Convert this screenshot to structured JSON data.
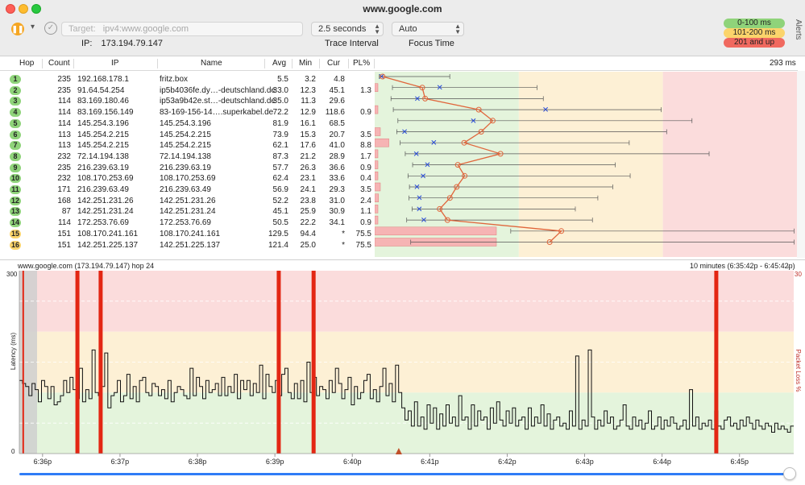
{
  "window": {
    "title": "www.google.com"
  },
  "toolbar": {
    "pause_icon": "pause-icon",
    "target_label": "Target:",
    "target_value": "ipv4:www.google.com",
    "ip_label": "IP:",
    "ip_value": "173.194.79.147",
    "interval_value": "2.5 seconds",
    "interval_label": "Trace Interval",
    "focus_value": "Auto",
    "focus_label": "Focus Time",
    "alerts_label": "Alerts"
  },
  "latency_legend": [
    {
      "label": "0-100 ms",
      "color": "#8fd37a"
    },
    {
      "label": "101-200 ms",
      "color": "#fbd46b"
    },
    {
      "label": "201 and up",
      "color": "#f0695f"
    }
  ],
  "table": {
    "headers": {
      "hop": "Hop",
      "count": "Count",
      "ip": "IP",
      "name": "Name",
      "avg": "Avg",
      "min": "Min",
      "cur": "Cur",
      "pl": "PL%",
      "scale": "293 ms"
    },
    "rows": [
      {
        "hop": "1",
        "count": "235",
        "ip": "192.168.178.1",
        "name": "fritz.box",
        "avg": "5.5",
        "min": "3.2",
        "cur": "4.8",
        "pl": "",
        "badge": "#8fd37a"
      },
      {
        "hop": "2",
        "count": "235",
        "ip": "91.64.54.254",
        "name": "ip5b4036fe.dy…-deutschland.de",
        "avg": "33.0",
        "min": "12.3",
        "cur": "45.1",
        "pl": "1.3",
        "badge": "#8fd37a"
      },
      {
        "hop": "3",
        "count": "114",
        "ip": "83.169.180.46",
        "name": "ip53a9b42e.st…-deutschland.de",
        "avg": "35.0",
        "min": "11.3",
        "cur": "29.6",
        "pl": "",
        "badge": "#8fd37a"
      },
      {
        "hop": "4",
        "count": "114",
        "ip": "83.169.156.149",
        "name": "83-169-156-14….superkabel.de",
        "avg": "72.2",
        "min": "12.9",
        "cur": "118.6",
        "pl": "0.9",
        "badge": "#8fd37a"
      },
      {
        "hop": "5",
        "count": "114",
        "ip": "145.254.3.196",
        "name": "145.254.3.196",
        "avg": "81.9",
        "min": "16.1",
        "cur": "68.5",
        "pl": "",
        "badge": "#8fd37a"
      },
      {
        "hop": "6",
        "count": "113",
        "ip": "145.254.2.215",
        "name": "145.254.2.215",
        "avg": "73.9",
        "min": "15.3",
        "cur": "20.7",
        "pl": "3.5",
        "badge": "#8fd37a"
      },
      {
        "hop": "7",
        "count": "113",
        "ip": "145.254.2.215",
        "name": "145.254.2.215",
        "avg": "62.1",
        "min": "17.6",
        "cur": "41.0",
        "pl": "8.8",
        "badge": "#8fd37a"
      },
      {
        "hop": "8",
        "count": "232",
        "ip": "72.14.194.138",
        "name": "72.14.194.138",
        "avg": "87.3",
        "min": "21.2",
        "cur": "28.9",
        "pl": "1.7",
        "badge": "#8fd37a"
      },
      {
        "hop": "9",
        "count": "235",
        "ip": "216.239.63.19",
        "name": "216.239.63.19",
        "avg": "57.7",
        "min": "26.3",
        "cur": "36.6",
        "pl": "0.9",
        "badge": "#8fd37a"
      },
      {
        "hop": "10",
        "count": "232",
        "ip": "108.170.253.69",
        "name": "108.170.253.69",
        "avg": "62.4",
        "min": "23.1",
        "cur": "33.6",
        "pl": "0.4",
        "badge": "#8fd37a"
      },
      {
        "hop": "11",
        "count": "171",
        "ip": "216.239.63.49",
        "name": "216.239.63.49",
        "avg": "56.9",
        "min": "24.1",
        "cur": "29.3",
        "pl": "3.5",
        "badge": "#8fd37a"
      },
      {
        "hop": "12",
        "count": "168",
        "ip": "142.251.231.26",
        "name": "142.251.231.26",
        "avg": "52.2",
        "min": "23.8",
        "cur": "31.0",
        "pl": "2.4",
        "badge": "#8fd37a"
      },
      {
        "hop": "13",
        "count": "87",
        "ip": "142.251.231.24",
        "name": "142.251.231.24",
        "avg": "45.1",
        "min": "25.9",
        "cur": "30.9",
        "pl": "1.1",
        "badge": "#8fd37a"
      },
      {
        "hop": "14",
        "count": "114",
        "ip": "172.253.76.69",
        "name": "172.253.76.69",
        "avg": "50.5",
        "min": "22.2",
        "cur": "34.1",
        "pl": "0.9",
        "badge": "#8fd37a"
      },
      {
        "hop": "15",
        "count": "151",
        "ip": "108.170.241.161",
        "name": "108.170.241.161",
        "avg": "129.5",
        "min": "94.4",
        "cur": "*",
        "pl": "75.5",
        "badge": "#fbd46b"
      },
      {
        "hop": "16",
        "count": "151",
        "ip": "142.251.225.137",
        "name": "142.251.225.137",
        "avg": "121.4",
        "min": "25.0",
        "cur": "*",
        "pl": "75.5",
        "badge": "#fbd46b"
      }
    ]
  },
  "graph": {
    "header_left": "www.google.com (173.194.79.147) hop 24",
    "header_right": "10 minutes (6:35:42p - 6:45:42p)",
    "y_axis_label": "Latency (ms)",
    "y2_axis_label": "Packet Loss %",
    "y_top": "300",
    "y_bottom": "0",
    "y2_top": "30",
    "x_ticks": [
      "6:36p",
      "6:37p",
      "6:38p",
      "6:39p",
      "6:40p",
      "6:41p",
      "6:42p",
      "6:43p",
      "6:44p",
      "6:45p"
    ]
  },
  "chart_data": {
    "type": "line",
    "title": "www.google.com (173.194.79.147) hop 24",
    "ylabel": "Latency (ms)",
    "y2label": "Packet Loss %",
    "ylim": [
      0,
      300
    ],
    "y2lim": [
      0,
      30
    ],
    "x_range": [
      "6:35:42p",
      "6:45:42p"
    ],
    "latency_zones_ms": [
      100,
      200
    ],
    "loss_events_minutes": [
      0.05,
      0.75,
      1.05,
      3.35,
      3.8,
      9.0
    ],
    "series": [
      {
        "values": [
          120,
          115,
          110,
          95,
          115,
          105,
          85,
          120,
          110,
          90,
          110,
          80,
          85,
          95,
          120,
          100,
          125,
          105,
          90,
          140,
          85,
          105,
          90,
          170,
          100,
          95,
          110,
          165,
          75,
          95,
          100,
          120,
          85,
          95,
          130,
          90,
          110,
          85,
          120,
          125,
          100,
          95,
          115,
          110,
          95,
          105,
          90,
          120,
          85,
          100,
          110,
          105,
          95,
          90,
          140,
          95,
          125,
          110,
          90,
          120,
          100,
          105,
          115,
          95,
          125,
          95,
          110,
          100,
          130,
          90,
          120,
          105,
          120,
          95,
          115,
          100,
          145,
          90,
          130,
          110,
          100,
          120,
          95,
          130,
          140,
          100,
          90,
          115,
          90,
          120,
          85,
          150,
          100,
          125,
          95,
          110,
          105,
          90,
          120,
          100,
          140,
          115,
          90,
          105,
          125,
          80,
          110,
          90,
          100,
          120,
          130,
          90,
          105,
          85,
          110,
          140,
          95,
          115,
          85,
          145,
          100,
          75,
          55,
          70,
          45,
          85,
          45,
          60,
          40,
          80,
          50,
          75,
          40,
          65,
          45,
          80,
          50,
          60,
          45,
          95,
          55,
          60,
          40,
          80,
          45,
          70,
          55,
          60,
          40,
          75,
          50,
          85,
          55,
          45,
          70,
          50,
          75,
          45,
          55,
          60,
          40,
          75,
          45,
          60,
          50,
          80,
          45,
          65,
          40,
          55,
          60,
          45,
          50,
          40,
          70,
          45,
          160,
          40,
          55,
          45,
          170,
          60,
          40,
          55,
          45,
          70,
          50,
          60,
          40,
          45,
          55,
          80,
          45,
          40,
          60,
          45,
          55,
          40,
          50,
          70,
          40,
          45,
          60,
          40,
          55,
          45,
          60,
          50,
          40,
          45,
          55,
          40,
          105,
          45,
          60,
          40,
          50,
          45,
          55,
          40,
          70,
          45,
          40,
          55,
          60,
          45,
          50,
          40,
          55,
          45,
          60,
          50,
          40,
          55,
          45,
          40,
          50,
          45,
          35,
          50,
          40,
          45,
          40,
          35,
          45
        ]
      }
    ]
  }
}
